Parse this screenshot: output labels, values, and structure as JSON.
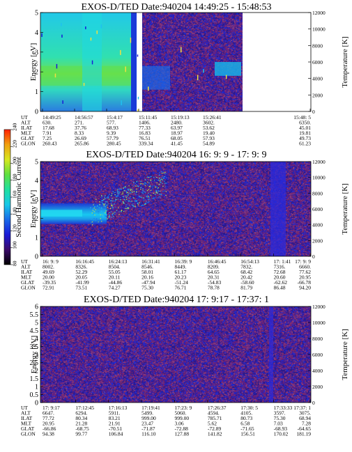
{
  "colors": {
    "background_field": "#2b1a8c",
    "white_gap": "#ffffff",
    "noise": [
      "#6b1f7a",
      "#7a2a6e",
      "#3a1faa",
      "#1f2ad0",
      "#8a3b7c"
    ]
  },
  "colorbar": {
    "label": "Second Harmonic Current",
    "tick_labels": [
      "80",
      "100",
      "120",
      "140",
      "160",
      "180",
      "200",
      "220",
      "240"
    ],
    "stops": [
      "#000000",
      "#3a0a6a",
      "#1a1ad8",
      "#1a6ae8",
      "#18c8e8",
      "#20e0a0",
      "#60e040",
      "#d8e820",
      "#f0a010",
      "#ff2000"
    ]
  },
  "chart_data": [
    {
      "type": "heatmap",
      "title": "EXOS-D/TED   Date:940204  14:49:25 - 15:48:53",
      "ylabel": "Energy [eV]",
      "y2label": "Temperature [K]",
      "ylim": [
        0,
        5
      ],
      "y_ticks": [
        "0",
        "1",
        "2",
        "3",
        "4",
        "5"
      ],
      "y2lim": [
        0,
        12000
      ],
      "y2_ticks": [
        "0",
        "2000",
        "4000",
        "6000",
        "8000",
        "10000",
        "12000"
      ],
      "row_labels": [
        "UT",
        "ALT",
        "ILAT",
        "MLT",
        "GLAT",
        "GLON"
      ],
      "columns": [
        {
          "UT": "14:49:25",
          "ALT": "630.",
          "ILAT": "17.68",
          "MLT": "7.91",
          "GLAT": "7.25",
          "GLON": "260.43"
        },
        {
          "UT": "14:56:57",
          "ALT": "271.",
          "ILAT": "37.76",
          "MLT": "8.33",
          "GLAT": "26.69",
          "GLON": "265.86"
        },
        {
          "UT": "15:4:17",
          "ALT": "577.",
          "ILAT": "68.93",
          "MLT": "9.39",
          "GLAT": "57.79",
          "GLON": "280.45"
        },
        {
          "UT": "15:11:45",
          "ALT": "1406.",
          "ILAT": "77.33",
          "MLT": "16.83",
          "GLAT": "76.51",
          "GLON": "339.34"
        },
        {
          "UT": "15:19:13",
          "ALT": "2480.",
          "ILAT": "63.97",
          "MLT": "18.97",
          "GLAT": "68.05",
          "GLON": "41.45"
        },
        {
          "UT": "15:26:41",
          "ALT": "3602.",
          "ILAT": "53.62",
          "MLT": "19.40",
          "GLAT": "57.93",
          "GLON": "54.89"
        },
        {
          "UT": "15:48: 5",
          "ALT": "6350.",
          "ILAT": "45.01",
          "MLT": "19.81",
          "GLAT": "49.73",
          "GLON": "61.23"
        }
      ]
    },
    {
      "type": "heatmap",
      "title": "EXOS-D/TED   Date:940204  16: 9: 9 - 17: 9: 9",
      "ylabel": "Energy [eV]",
      "y2label": "Temperature [K]",
      "ylim": [
        0,
        5
      ],
      "y_ticks": [
        "0",
        "1",
        "2",
        "3",
        "4",
        "5"
      ],
      "y2lim": [
        0,
        12000
      ],
      "y2_ticks": [
        "0",
        "2000",
        "4000",
        "6000",
        "8000",
        "10000",
        "12000"
      ],
      "row_labels": [
        "UT",
        "ALT",
        "ILAT",
        "MLT",
        "GLAT",
        "GLON"
      ],
      "columns": [
        {
          "UT": "16: 9: 9",
          "ALT": "8002.",
          "ILAT": "49.69",
          "MLT": "20.00",
          "GLAT": "-39.35",
          "GLON": "72.91"
        },
        {
          "UT": "16:16:45",
          "ALT": "8326.",
          "ILAT": "52.29",
          "MLT": "20.05",
          "GLAT": "-41.99",
          "GLON": "73.51"
        },
        {
          "UT": "16:24:13",
          "ALT": "8504.",
          "ILAT": "55.05",
          "MLT": "20.11",
          "GLAT": "-44.86",
          "GLON": "74.27"
        },
        {
          "UT": "16:31:41",
          "ALT": "8546.",
          "ILAT": "58.01",
          "MLT": "20.16",
          "GLAT": "-47.94",
          "GLON": "75.30"
        },
        {
          "UT": "16:39: 9",
          "ALT": "8449.",
          "ILAT": "61.17",
          "MLT": "20.23",
          "GLAT": "-51.24",
          "GLON": "76.71"
        },
        {
          "UT": "16:46:45",
          "ALT": "8209.",
          "ILAT": "64.65",
          "MLT": "20.31",
          "GLAT": "-54.83",
          "GLON": "78.78"
        },
        {
          "UT": "16:54:13",
          "ALT": "7832.",
          "ILAT": "68.42",
          "MLT": "20.42",
          "GLAT": "-58.60",
          "GLON": "81.79"
        },
        {
          "UT": "17: 1:41",
          "ALT": "7316.",
          "ILAT": "72.68",
          "MLT": "20.60",
          "GLAT": "-62.62",
          "GLON": "86.48"
        },
        {
          "UT": "17: 9: 9",
          "ALT": "6660.",
          "ILAT": "77.62",
          "MLT": "20.95",
          "GLAT": "-66.78",
          "GLON": "94.20"
        }
      ]
    },
    {
      "type": "heatmap",
      "title": "EXOS-D/TED   Date:940204  17: 9:17 - 17:37: 1",
      "ylabel": "Energy [eV]",
      "y2label": "Temperature [K]",
      "ylim": [
        0,
        6
      ],
      "y_ticks": [
        "0",
        "0.5",
        "1",
        "1.5",
        "2",
        "2.5",
        "3",
        "3.5",
        "4",
        "4.5",
        "5",
        "5.5",
        "6"
      ],
      "y2lim": [
        0,
        12000
      ],
      "y2_ticks": [
        "0",
        "2000",
        "4000",
        "6000",
        "8000",
        "10000",
        "12000"
      ],
      "row_labels": [
        "UT",
        "ALT",
        "ILAT",
        "MLT",
        "GLAT",
        "GLON"
      ],
      "columns": [
        {
          "UT": "17: 9:17",
          "ALT": "6647.",
          "ILAT": "77.72",
          "MLT": "20.95",
          "GLAT": "-66.86",
          "GLON": "94.38"
        },
        {
          "UT": "17:12:45",
          "ALT": "6294.",
          "ILAT": "80.34",
          "MLT": "21.28",
          "GLAT": "-68.75",
          "GLON": "99.77"
        },
        {
          "UT": "17:16:13",
          "ALT": "5911.",
          "ILAT": "83.21",
          "MLT": "21.91",
          "GLAT": "-70.51",
          "GLON": "106.84"
        },
        {
          "UT": "17:19:41",
          "ALT": "5499.",
          "ILAT": "999.00",
          "MLT": "23.47",
          "GLAT": "-71.87",
          "GLON": "116.10"
        },
        {
          "UT": "17:23: 9",
          "ALT": "5060.",
          "ILAT": "999.00",
          "MLT": "3.06",
          "GLAT": "-72.88",
          "GLON": "127.88"
        },
        {
          "UT": "17:26:37",
          "ALT": "4594.",
          "ILAT": "785.71",
          "MLT": "5.62",
          "GLAT": "-72.89",
          "GLON": "141.82"
        },
        {
          "UT": "17:30: 5",
          "ALT": "4105.",
          "ILAT": "80.73",
          "MLT": "6.58",
          "GLAT": "-71.65",
          "GLON": "156.51"
        },
        {
          "UT": "17:33:33",
          "ALT": "3597.",
          "ILAT": "75.30",
          "MLT": "7.03",
          "GLAT": "-68.93",
          "GLON": "170.02"
        },
        {
          "UT": "17:37: 1",
          "ALT": "3075.",
          "ILAT": "68.94",
          "MLT": "7.28",
          "GLAT": "-64.65",
          "GLON": "181.19"
        }
      ]
    }
  ]
}
